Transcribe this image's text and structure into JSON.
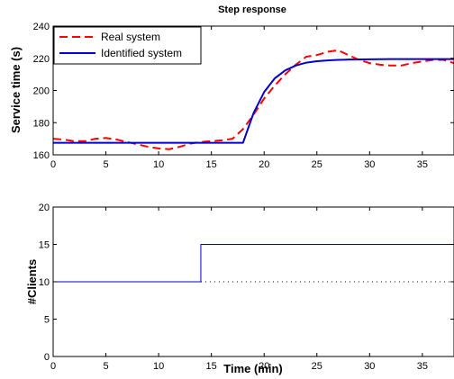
{
  "chart_data": [
    {
      "type": "line",
      "title": "Step response",
      "xlabel": "",
      "ylabel": "Service time (s)",
      "xlim": [
        0,
        38
      ],
      "ylim": [
        160,
        240
      ],
      "xticks": [
        0,
        5,
        10,
        15,
        20,
        25,
        30,
        35
      ],
      "yticks": [
        160,
        180,
        200,
        220,
        240
      ],
      "grid": false,
      "legend": "top-left",
      "series": [
        {
          "name": "Real system",
          "color": "#ff0000",
          "style": "dashed",
          "x": [
            0,
            1,
            2,
            3,
            4,
            5,
            6,
            7,
            8,
            9,
            10,
            11,
            12,
            13,
            14,
            15,
            16,
            17,
            18,
            19,
            20,
            21,
            22,
            23,
            24,
            25,
            26,
            27,
            28,
            29,
            30,
            31,
            32,
            33,
            34,
            35,
            36,
            37,
            38
          ],
          "y": [
            170,
            169.5,
            168.5,
            168.5,
            170,
            170.5,
            169.5,
            168,
            166.5,
            165,
            164,
            163.5,
            165,
            167,
            168,
            168.5,
            169,
            170,
            176,
            185,
            195,
            203,
            210,
            216,
            221,
            222,
            224,
            225,
            222,
            219,
            217,
            216,
            215.5,
            215.5,
            217,
            218,
            219,
            219,
            217
          ]
        },
        {
          "name": "Identified system",
          "color": "#0000cc",
          "style": "solid",
          "x": [
            0,
            2,
            4,
            6,
            8,
            10,
            12,
            14,
            16,
            18,
            19,
            20,
            21,
            22,
            23,
            24,
            25,
            26,
            27,
            28,
            30,
            32,
            34,
            36,
            38
          ],
          "y": [
            167.5,
            167.5,
            167.5,
            167.5,
            167.5,
            167.5,
            167.5,
            167.5,
            167.5,
            167.5,
            186,
            199,
            207.5,
            212.5,
            215.5,
            217.3,
            218.2,
            218.7,
            219,
            219.2,
            219.4,
            219.5,
            219.5,
            219.5,
            219.5
          ]
        }
      ]
    },
    {
      "type": "line",
      "title": "",
      "xlabel": "Time (min)",
      "ylabel": "#Clients",
      "xlim": [
        0,
        38
      ],
      "ylim": [
        0,
        20
      ],
      "xticks": [
        0,
        5,
        10,
        15,
        20,
        25,
        30,
        35
      ],
      "yticks": [
        0,
        5,
        10,
        15,
        20
      ],
      "grid": false,
      "legend": "none",
      "series": [
        {
          "color": "#0000cc",
          "style": "solid",
          "x": [
            0,
            14,
            14,
            38
          ],
          "y": [
            10,
            10,
            15,
            15
          ]
        },
        {
          "color": "#000000",
          "style": "dotted",
          "x": [
            14,
            38
          ],
          "y": [
            10,
            10
          ]
        }
      ]
    }
  ]
}
